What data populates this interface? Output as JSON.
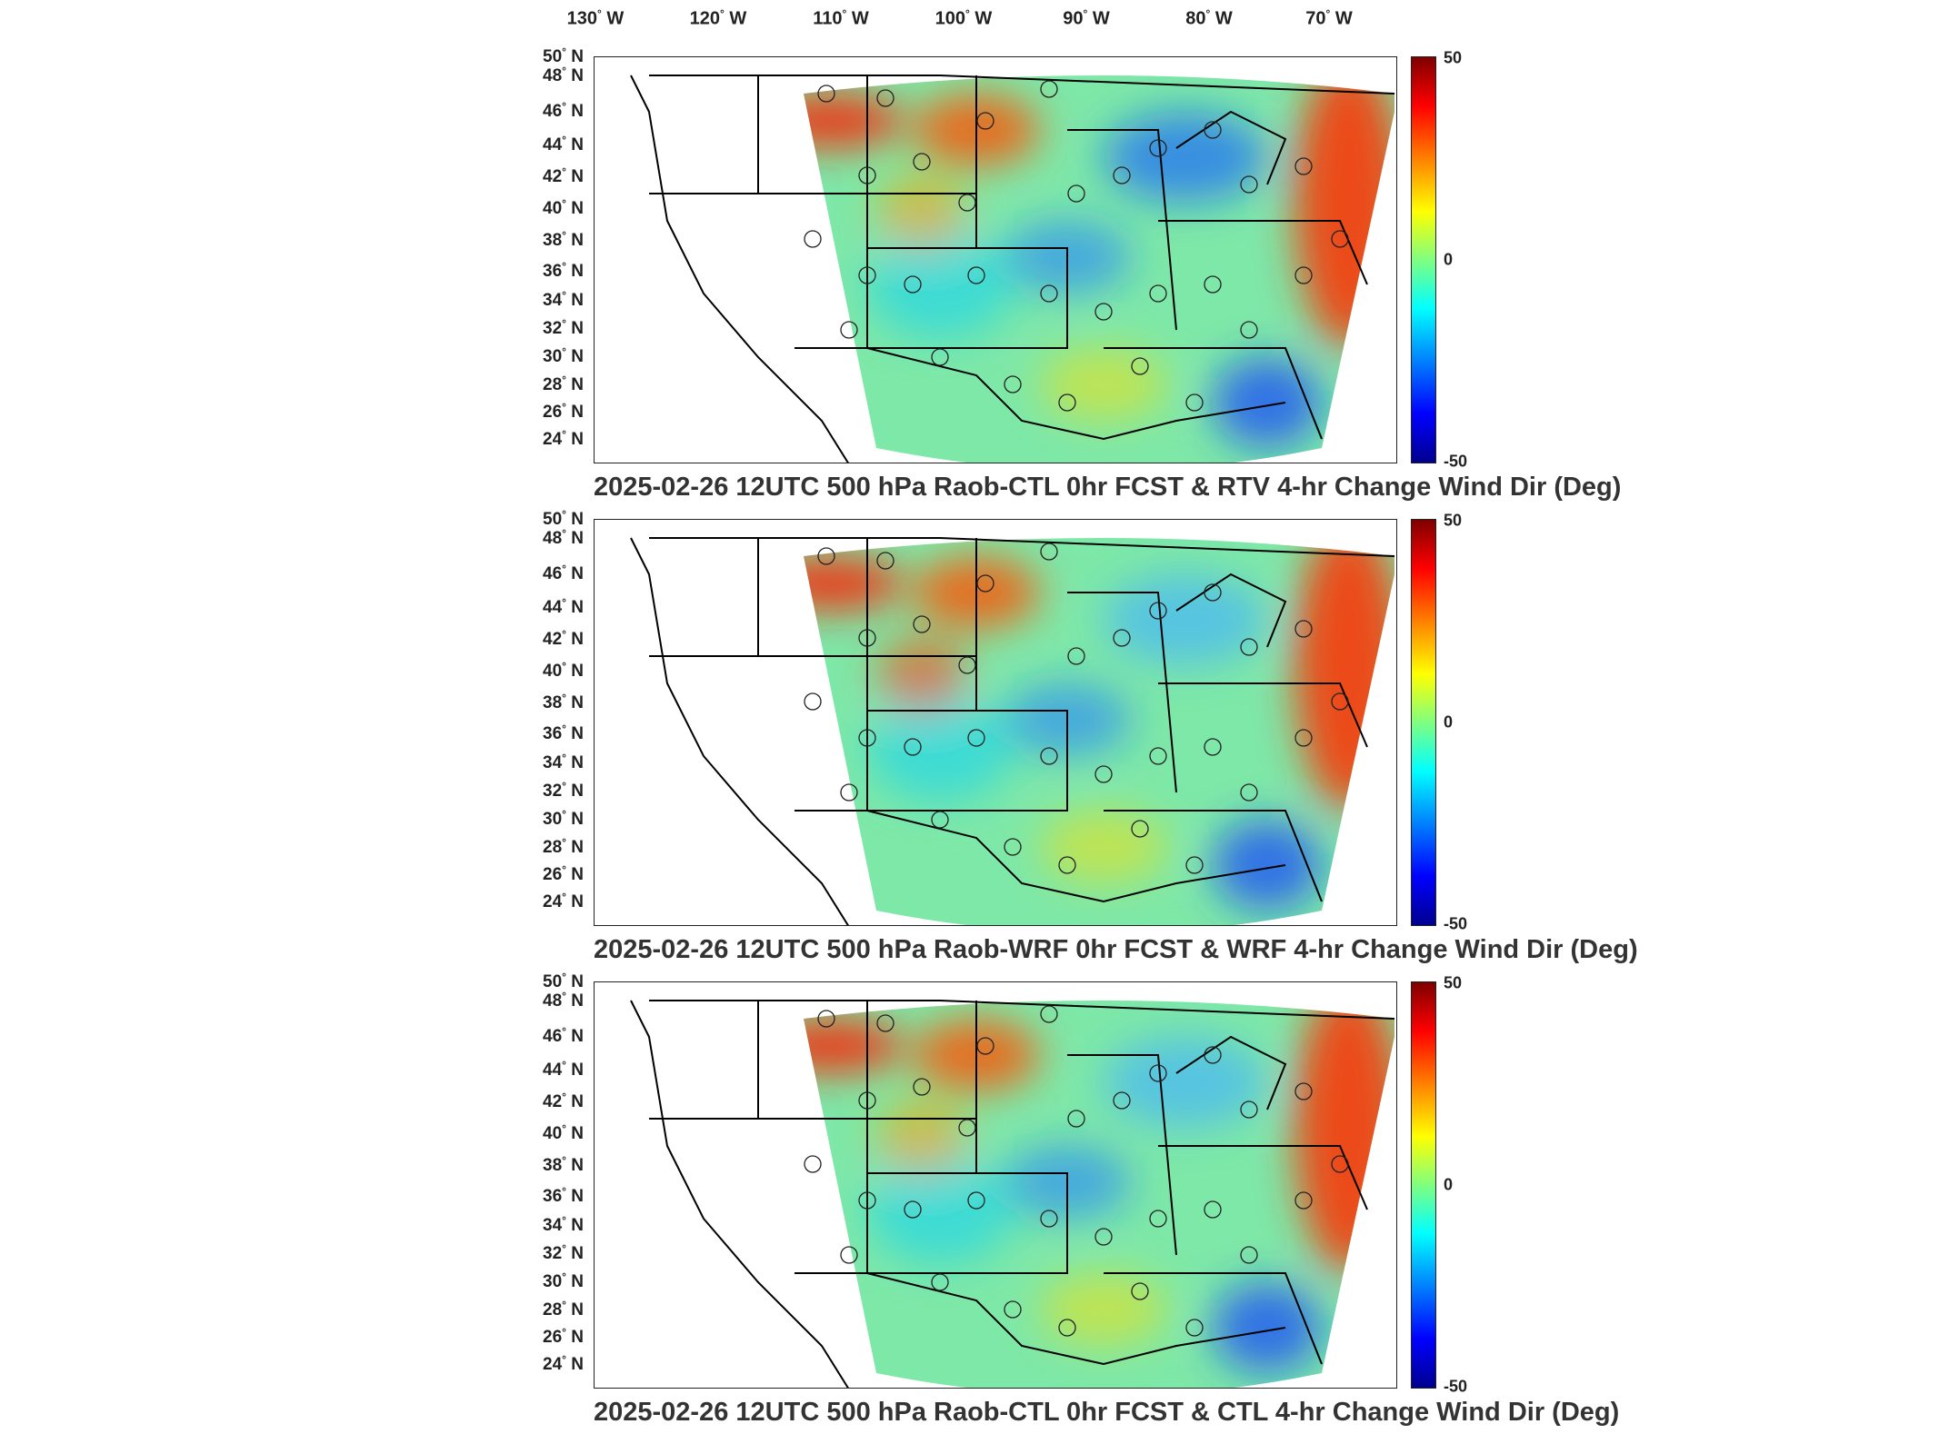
{
  "longitude_labels": [
    {
      "deg": "130",
      "hemi": "W"
    },
    {
      "deg": "120",
      "hemi": "W"
    },
    {
      "deg": "110",
      "hemi": "W"
    },
    {
      "deg": "100",
      "hemi": "W"
    },
    {
      "deg": "90",
      "hemi": "W"
    },
    {
      "deg": "80",
      "hemi": "W"
    },
    {
      "deg": "70",
      "hemi": "W"
    }
  ],
  "latitude_labels": [
    {
      "deg": "50",
      "hemi": "N"
    },
    {
      "deg": "48",
      "hemi": "N"
    },
    {
      "deg": "46",
      "hemi": "N"
    },
    {
      "deg": "44",
      "hemi": "N"
    },
    {
      "deg": "42",
      "hemi": "N"
    },
    {
      "deg": "40",
      "hemi": "N"
    },
    {
      "deg": "38",
      "hemi": "N"
    },
    {
      "deg": "36",
      "hemi": "N"
    },
    {
      "deg": "34",
      "hemi": "N"
    },
    {
      "deg": "32",
      "hemi": "N"
    },
    {
      "deg": "30",
      "hemi": "N"
    },
    {
      "deg": "28",
      "hemi": "N"
    },
    {
      "deg": "26",
      "hemi": "N"
    },
    {
      "deg": "24",
      "hemi": "N"
    }
  ],
  "colorbar": {
    "max_label": "50",
    "mid_label": "0",
    "min_label": "-50",
    "colors": [
      "#7f0000",
      "#ff0000",
      "#ff8000",
      "#ffff00",
      "#80ff80",
      "#00ffff",
      "#0080ff",
      "#0000ff",
      "#00008f"
    ]
  },
  "panels": [
    {
      "title": "2025-02-26 12UTC 500 hPa Raob-CTL 0hr FCST & RTV 4-hr Change Wind Dir (Deg)"
    },
    {
      "title": "2025-02-26 12UTC 500 hPa Raob-WRF 0hr FCST & WRF 4-hr Change Wind Dir (Deg)"
    },
    {
      "title": "2025-02-26 12UTC 500 hPa Raob-CTL 0hr FCST & CTL 4-hr Change Wind Dir (Deg)"
    }
  ]
}
